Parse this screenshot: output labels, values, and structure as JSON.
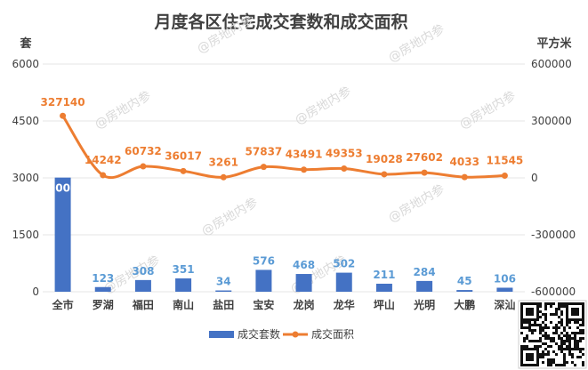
{
  "chart_data": {
    "type": "bar+line",
    "title": "月度各区住宅成交套数和成交面积",
    "y_left_unit": "套",
    "y_right_unit": "平方米",
    "categories": [
      "全市",
      "罗湖",
      "福田",
      "南山",
      "盐田",
      "宝安",
      "龙岗",
      "龙华",
      "坪山",
      "光明",
      "大鹏",
      "深汕"
    ],
    "series": [
      {
        "name": "成交套数",
        "type": "bar",
        "axis": "left",
        "color": "#4472c4",
        "label_color": "#5b9bd5",
        "values": [
          3008,
          123,
          308,
          351,
          34,
          576,
          468,
          502,
          211,
          284,
          45,
          106
        ]
      },
      {
        "name": "成交面积",
        "type": "line",
        "axis": "right",
        "color": "#ed7d31",
        "values": [
          327140,
          14242,
          60732,
          36017,
          3261,
          57837,
          43491,
          49353,
          19028,
          27602,
          4033,
          11545
        ]
      }
    ],
    "ylim_left": [
      0,
      6000
    ],
    "yticks_left": [
      "0",
      "1500",
      "3000",
      "4500",
      "6000"
    ],
    "ylim_right": [
      -600000,
      600000
    ],
    "yticks_right": [
      "-600000",
      "-300000",
      "0",
      "300000",
      "600000"
    ],
    "grid": true,
    "legend_position": "bottom",
    "watermark": "@房地内参"
  }
}
